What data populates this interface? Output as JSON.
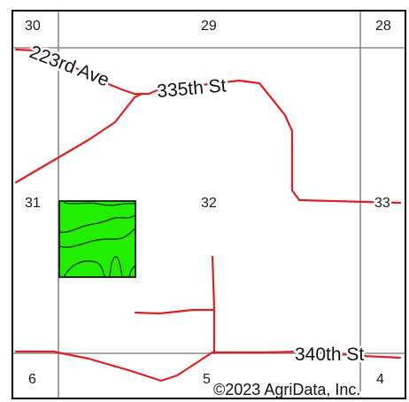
{
  "sections": [
    "30",
    "29",
    "28",
    "31",
    "32",
    "33",
    "6",
    "5",
    "4"
  ],
  "roads": {
    "north_road_1": "223rd Ave",
    "north_road_2": "335th St",
    "south_road": "340th St"
  },
  "copyright": "©2023 AgriData, Inc.",
  "colors": {
    "road": "#e02020",
    "parcel_fill": "#22ee00",
    "grid": "#8a8a8a",
    "frame": "#000000"
  }
}
